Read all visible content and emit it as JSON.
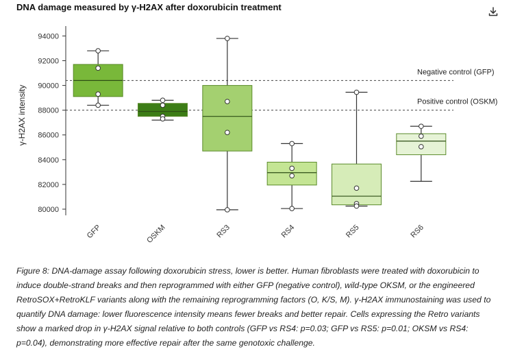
{
  "title": "DNA damage measured by γ-H2AX after doxorubicin treatment",
  "download_icon": "download-icon",
  "caption": "Figure 8: DNA-damage assay following doxorubicin stress, lower is better. Human fibroblasts were treated with doxorubicin to induce double-strand breaks and then reprogrammed with either GFP (negative control), wild-type OKSM, or the engineered RetroSOX+RetroKLF variants along with the remaining reprogramming factors (O, K/S, M). γ-H2AX immunostaining was used to quantify DNA damage: lower fluorescence intensity means fewer breaks and better repair. Cells expressing the Retro variants show a marked drop in γ-H2AX signal relative to both controls (GFP vs RS4: p=0.03; GFP vs RS5: p=0.01; OKSM vs RS4: p=0.04), demonstrating more effective repair after the same genotoxic challenge.",
  "chart_data": {
    "type": "box",
    "ylabel": "γ-H2AX intensity",
    "xlabel": "",
    "ylim": [
      79500,
      94800
    ],
    "yticks": [
      "80000",
      "82000",
      "84000",
      "86000",
      "88000",
      "90000",
      "92000",
      "94000"
    ],
    "ytick_values": [
      80000,
      82000,
      84000,
      86000,
      88000,
      90000,
      92000,
      94000
    ],
    "grid": false,
    "reference_lines": [
      {
        "label": "Negative control (GFP)",
        "value": 90400
      },
      {
        "label": "Positive control (OSKM)",
        "value": 88000
      }
    ],
    "categories": [
      "GFP",
      "OSKM",
      "RS3",
      "RS4",
      "RS5",
      "RS6"
    ],
    "boxes": [
      {
        "name": "GFP",
        "whisker_low": 88400,
        "q1": 89100,
        "median": 90400,
        "q3": 91700,
        "whisker_high": 92800,
        "points": [
          92800,
          91400,
          89300,
          88400
        ],
        "color": "#79b83a"
      },
      {
        "name": "OSKM",
        "whisker_low": 87200,
        "q1": 87500,
        "median": 87900,
        "q3": 88550,
        "whisker_high": 88800,
        "points": [
          88800,
          88400,
          87500,
          87300
        ],
        "color": "#3c7d16"
      },
      {
        "name": "RS3",
        "whisker_low": 79950,
        "q1": 84700,
        "median": 87500,
        "q3": 90000,
        "whisker_high": 93800,
        "points": [
          93800,
          88700,
          86200,
          79950
        ],
        "color": "#a4d070"
      },
      {
        "name": "RS4",
        "whisker_low": 80050,
        "q1": 81950,
        "median": 82950,
        "q3": 83800,
        "whisker_high": 85300,
        "points": [
          85300,
          83300,
          82700,
          80050
        ],
        "color": "#c4e594"
      },
      {
        "name": "RS5",
        "whisker_low": 80250,
        "q1": 80350,
        "median": 81050,
        "q3": 83650,
        "whisker_high": 89450,
        "points": [
          89450,
          81700,
          80450,
          80250
        ],
        "color": "#d6ecb8"
      },
      {
        "name": "RS6",
        "whisker_low": 82250,
        "q1": 84400,
        "median": 85500,
        "q3": 86100,
        "whisker_high": 86700,
        "points": [
          86700,
          85900,
          85050
        ],
        "color": "#e6f3d6"
      }
    ]
  }
}
